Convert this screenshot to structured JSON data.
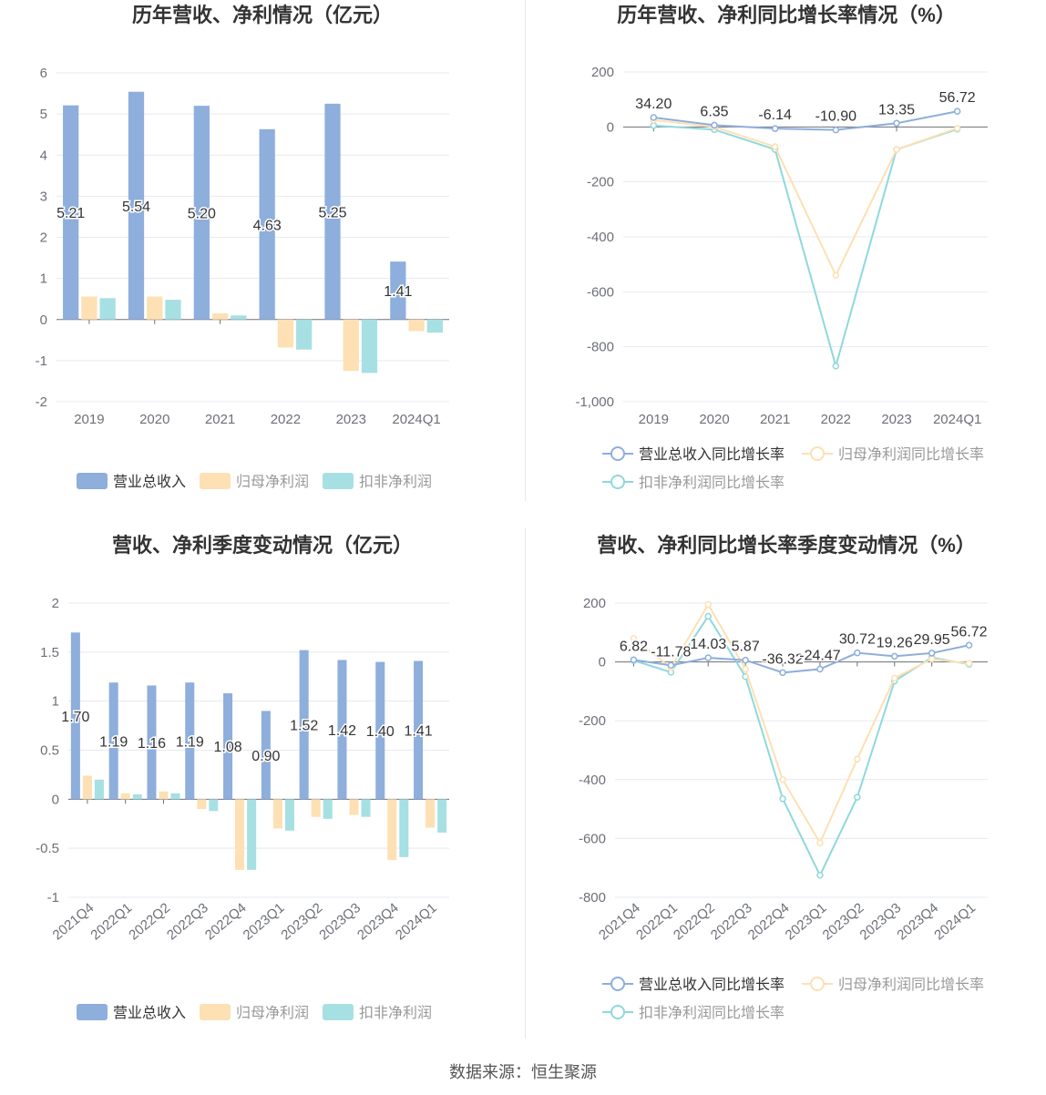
{
  "source": "数据来源：恒生聚源",
  "chart_data": [
    {
      "id": "annual-rev-profit",
      "type": "bar",
      "title": "历年营收、净利情况（亿元）",
      "categories": [
        "2019",
        "2020",
        "2021",
        "2022",
        "2023",
        "2024Q1"
      ],
      "ylim": [
        -2,
        6
      ],
      "yticks": [
        -2,
        -1,
        0,
        1,
        2,
        3,
        4,
        5,
        6
      ],
      "ytick_labels": [
        "-2",
        "-1",
        "0",
        "1",
        "2",
        "3",
        "4",
        "5",
        "6"
      ],
      "grid": true,
      "legend_position": "bottom",
      "series": [
        {
          "name": "营业总收入",
          "color": "#8eaedc",
          "values": [
            5.21,
            5.54,
            5.2,
            4.63,
            5.25,
            1.41
          ],
          "labels": [
            "5.21",
            "5.54",
            "5.20",
            "4.63",
            "5.25",
            "1.41"
          ]
        },
        {
          "name": "归母净利润",
          "color": "#fde0b3",
          "values": [
            0.56,
            0.56,
            0.15,
            -0.68,
            -1.25,
            -0.28
          ]
        },
        {
          "name": "扣非净利润",
          "color": "#a6e0e3",
          "values": [
            0.52,
            0.48,
            0.1,
            -0.73,
            -1.3,
            -0.32
          ]
        }
      ]
    },
    {
      "id": "annual-growth",
      "type": "line",
      "title": "历年营收、净利同比增长率情况（%）",
      "categories": [
        "2019",
        "2020",
        "2021",
        "2022",
        "2023",
        "2024Q1"
      ],
      "ylim": [
        -1000,
        200
      ],
      "yticks": [
        -1000,
        -800,
        -600,
        -400,
        -200,
        0,
        200
      ],
      "ytick_labels": [
        "-1,000",
        "-800",
        "-600",
        "-400",
        "-200",
        "0",
        "200"
      ],
      "grid": true,
      "legend_position": "bottom",
      "series": [
        {
          "name": "营业总收入同比增长率",
          "color": "#8eaedc",
          "values": [
            34.2,
            6.35,
            -6.14,
            -10.9,
            13.35,
            56.72
          ],
          "labels": [
            "34.20",
            "6.35",
            "-6.14",
            "-10.90",
            "13.35",
            "56.72"
          ]
        },
        {
          "name": "归母净利润同比增长率",
          "color": "#fde0b3",
          "values": [
            25,
            0,
            -72,
            -540,
            -82,
            -5
          ]
        },
        {
          "name": "扣非净利润同比增长率",
          "color": "#8fd8dc",
          "values": [
            5,
            -10,
            -82,
            -870,
            -82,
            -8
          ]
        }
      ]
    },
    {
      "id": "quarterly-rev-profit",
      "type": "bar",
      "title": "营收、净利季度变动情况（亿元）",
      "categories": [
        "2021Q4",
        "2022Q1",
        "2022Q2",
        "2022Q3",
        "2022Q4",
        "2023Q1",
        "2023Q2",
        "2023Q3",
        "2023Q4",
        "2024Q1"
      ],
      "ylim": [
        -1,
        2
      ],
      "yticks": [
        -1,
        -0.5,
        0,
        0.5,
        1,
        1.5,
        2
      ],
      "ytick_labels": [
        "-1",
        "-0.5",
        "0",
        "0.5",
        "1",
        "1.5",
        "2"
      ],
      "grid": true,
      "legend_position": "bottom",
      "series": [
        {
          "name": "营业总收入",
          "color": "#8eaedc",
          "values": [
            1.7,
            1.19,
            1.16,
            1.19,
            1.08,
            0.9,
            1.52,
            1.42,
            1.4,
            1.41
          ],
          "labels": [
            "1.70",
            "1.19",
            "1.16",
            "1.19",
            "1.08",
            "0.90",
            "1.52",
            "1.42",
            "1.40",
            "1.41"
          ]
        },
        {
          "name": "归母净利润",
          "color": "#fde0b3",
          "values": [
            0.24,
            0.06,
            0.08,
            -0.1,
            -0.72,
            -0.3,
            -0.18,
            -0.16,
            -0.62,
            -0.29
          ]
        },
        {
          "name": "扣非净利润",
          "color": "#a6e0e3",
          "values": [
            0.2,
            0.05,
            0.06,
            -0.12,
            -0.72,
            -0.32,
            -0.2,
            -0.18,
            -0.59,
            -0.34
          ]
        }
      ]
    },
    {
      "id": "quarterly-growth",
      "type": "line",
      "title": "营收、净利同比增长率季度变动情况（%）",
      "categories": [
        "2021Q4",
        "2022Q1",
        "2022Q2",
        "2022Q3",
        "2022Q4",
        "2023Q1",
        "2023Q2",
        "2023Q3",
        "2023Q4",
        "2024Q1"
      ],
      "ylim": [
        -800,
        200
      ],
      "yticks": [
        -800,
        -600,
        -400,
        -200,
        0,
        200
      ],
      "ytick_labels": [
        "-800",
        "-600",
        "-400",
        "-200",
        "0",
        "200"
      ],
      "grid": true,
      "legend_position": "bottom",
      "series": [
        {
          "name": "营业总收入同比增长率",
          "color": "#8eaedc",
          "values": [
            6.82,
            -11.78,
            14.03,
            5.87,
            -36.32,
            -24.47,
            30.72,
            19.26,
            29.95,
            56.72
          ],
          "labels": [
            "6.82",
            "-11.78",
            "14.03",
            "5.87",
            "-36.32",
            "-24.47",
            "30.72",
            "19.26",
            "29.95",
            "56.72"
          ]
        },
        {
          "name": "归母净利润同比增长率",
          "color": "#fde0b3",
          "values": [
            80,
            -20,
            195,
            -25,
            -400,
            -615,
            -330,
            -55,
            10,
            -5
          ]
        },
        {
          "name": "扣非净利润同比增长率",
          "color": "#8fd8dc",
          "values": [
            5,
            -35,
            155,
            -50,
            -465,
            -725,
            -460,
            -65,
            15,
            -8
          ]
        }
      ]
    }
  ]
}
